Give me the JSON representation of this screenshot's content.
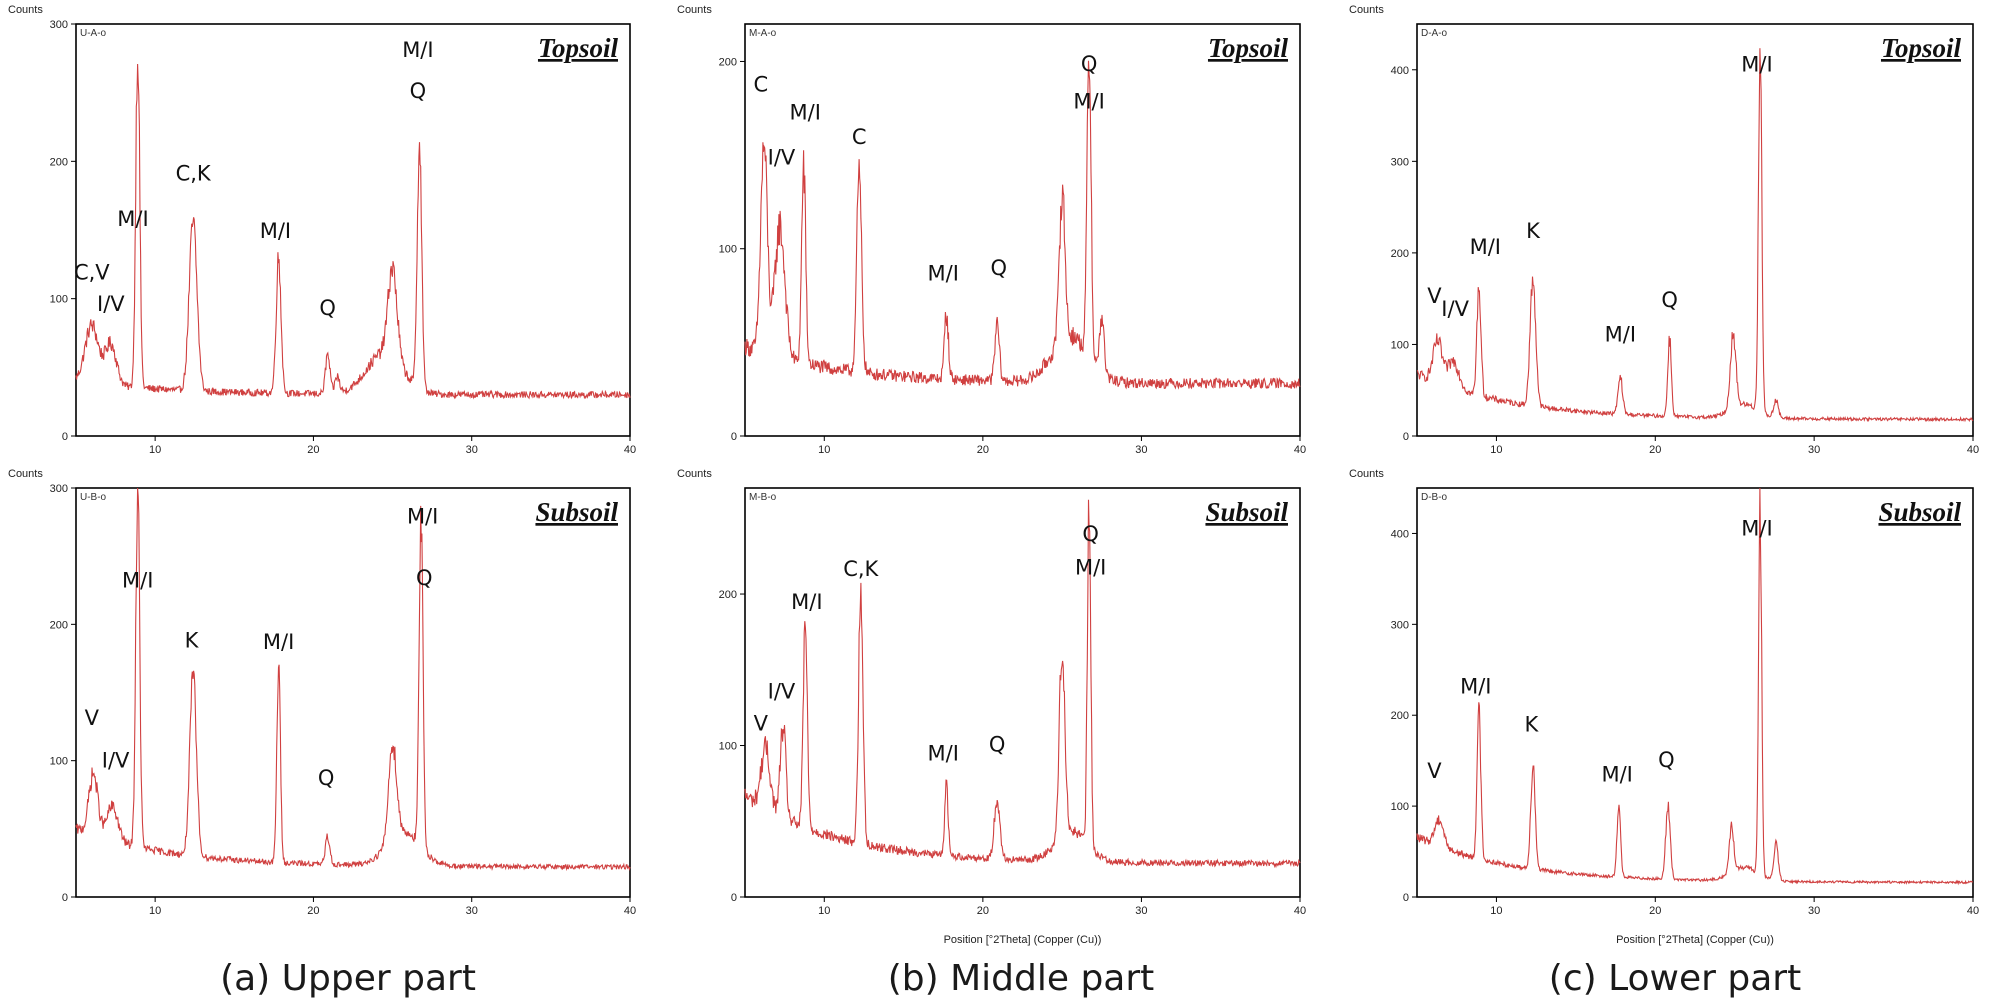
{
  "captions": [
    "(a) Upper part",
    "(b) Middle part",
    "(c) Lower part"
  ],
  "chart_data": [
    {
      "type": "line",
      "panel": "upper-topsoil",
      "sample": "U-A-o",
      "title": "Topsoil",
      "ylabel": "Counts",
      "xlabel": "",
      "xlim": [
        5,
        40
      ],
      "ylim": [
        0,
        300
      ],
      "xticks": [
        10,
        20,
        30,
        40
      ],
      "yticks": [
        0,
        100,
        200,
        300
      ],
      "line_color": "#d04040",
      "background": 30,
      "decay": 10,
      "noise": 0.16,
      "peaks": [
        [
          6,
          42,
          0.6
        ],
        [
          7.2,
          30,
          0.5
        ],
        [
          8.9,
          248,
          0.18
        ],
        [
          12.4,
          122,
          0.35
        ],
        [
          17.8,
          98,
          0.22
        ],
        [
          20.9,
          28,
          0.2
        ],
        [
          21.5,
          12,
          0.2
        ],
        [
          25,
          65,
          0.4
        ],
        [
          26.7,
          180,
          0.2
        ],
        [
          24.5,
          30,
          1.6
        ]
      ],
      "labels": [
        {
          "text": "C,V",
          "x": 6.0,
          "y": 114
        },
        {
          "text": "I/V",
          "x": 7.2,
          "y": 91
        },
        {
          "text": "M/I",
          "x": 8.6,
          "y": 153
        },
        {
          "text": "C,K",
          "x": 12.4,
          "y": 186
        },
        {
          "text": "M/I",
          "x": 17.6,
          "y": 144
        },
        {
          "text": "Q",
          "x": 20.9,
          "y": 88
        },
        {
          "text": "M/I",
          "x": 26.6,
          "y": 276
        },
        {
          "text": "Q",
          "x": 26.6,
          "y": 246
        }
      ]
    },
    {
      "type": "line",
      "panel": "middle-topsoil",
      "sample": "M-A-o",
      "title": "Topsoil",
      "ylabel": "Counts",
      "xlabel": "",
      "xlim": [
        5,
        40
      ],
      "ylim": [
        0,
        220
      ],
      "xticks": [
        10,
        20,
        30,
        40
      ],
      "yticks": [
        0,
        100,
        200
      ],
      "line_color": "#d04040",
      "background": 28,
      "decay": 20,
      "noise": 0.2,
      "peaks": [
        [
          6.2,
          110,
          0.3
        ],
        [
          7.2,
          70,
          0.45
        ],
        [
          8.7,
          105,
          0.18
        ],
        [
          12.2,
          105,
          0.22
        ],
        [
          17.7,
          35,
          0.18
        ],
        [
          20.9,
          30,
          0.2
        ],
        [
          25,
          80,
          0.25
        ],
        [
          26.7,
          165,
          0.18
        ],
        [
          27.5,
          30,
          0.2
        ],
        [
          25.5,
          25,
          1.6
        ]
      ],
      "labels": [
        {
          "text": "C",
          "x": 6.0,
          "y": 184
        },
        {
          "text": "I/V",
          "x": 7.3,
          "y": 145
        },
        {
          "text": "M/I",
          "x": 8.8,
          "y": 169
        },
        {
          "text": "C",
          "x": 12.2,
          "y": 156
        },
        {
          "text": "M/I",
          "x": 17.5,
          "y": 83
        },
        {
          "text": "Q",
          "x": 21.0,
          "y": 86
        },
        {
          "text": "Q",
          "x": 26.7,
          "y": 195
        },
        {
          "text": "M/I",
          "x": 26.7,
          "y": 175
        }
      ]
    },
    {
      "type": "line",
      "panel": "lower-topsoil",
      "sample": "D-A-o",
      "title": "Topsoil",
      "ylabel": "Counts",
      "xlabel": "",
      "xlim": [
        5,
        40
      ],
      "ylim": [
        0,
        450
      ],
      "xticks": [
        10,
        20,
        30,
        40
      ],
      "yticks": [
        0,
        100,
        200,
        300,
        400
      ],
      "line_color": "#d04040",
      "background": 18,
      "decay": 50,
      "noise": 0.18,
      "peaks": [
        [
          6.3,
          45,
          0.4
        ],
        [
          7.3,
          30,
          0.5
        ],
        [
          8.9,
          120,
          0.18
        ],
        [
          12.3,
          140,
          0.25
        ],
        [
          17.8,
          40,
          0.2
        ],
        [
          20.9,
          85,
          0.16
        ],
        [
          24.9,
          80,
          0.25
        ],
        [
          26.6,
          405,
          0.15
        ],
        [
          27.6,
          20,
          0.2
        ],
        [
          25.6,
          15,
          1.2
        ]
      ],
      "labels": [
        {
          "text": "V",
          "x": 6.1,
          "y": 145
        },
        {
          "text": "I/V",
          "x": 7.4,
          "y": 131
        },
        {
          "text": "M/I",
          "x": 9.3,
          "y": 199
        },
        {
          "text": "K",
          "x": 12.3,
          "y": 216
        },
        {
          "text": "M/I",
          "x": 17.8,
          "y": 103
        },
        {
          "text": "Q",
          "x": 20.9,
          "y": 141
        },
        {
          "text": "M/I",
          "x": 26.4,
          "y": 398
        }
      ]
    },
    {
      "type": "line",
      "panel": "upper-subsoil",
      "sample": "U-B-o",
      "title": "Subsoil",
      "ylabel": "Counts",
      "xlabel": "",
      "xlim": [
        5,
        40
      ],
      "ylim": [
        0,
        300
      ],
      "xticks": [
        10,
        20,
        30,
        40
      ],
      "yticks": [
        0,
        100,
        200,
        300
      ],
      "line_color": "#d04040",
      "background": 22,
      "decay": 28,
      "noise": 0.16,
      "peaks": [
        [
          6.1,
          45,
          0.4
        ],
        [
          7.3,
          25,
          0.5
        ],
        [
          8.9,
          260,
          0.18
        ],
        [
          12.4,
          130,
          0.3
        ],
        [
          17.8,
          145,
          0.16
        ],
        [
          20.9,
          20,
          0.2
        ],
        [
          25,
          70,
          0.35
        ],
        [
          26.8,
          240,
          0.17
        ],
        [
          25.7,
          25,
          1.5
        ]
      ],
      "labels": [
        {
          "text": "V",
          "x": 6.0,
          "y": 126
        },
        {
          "text": "I/V",
          "x": 7.5,
          "y": 95
        },
        {
          "text": "M/I",
          "x": 8.9,
          "y": 227
        },
        {
          "text": "K",
          "x": 12.3,
          "y": 183
        },
        {
          "text": "M/I",
          "x": 17.8,
          "y": 182
        },
        {
          "text": "Q",
          "x": 20.8,
          "y": 82
        },
        {
          "text": "M/I",
          "x": 26.9,
          "y": 274
        },
        {
          "text": "Q",
          "x": 27.0,
          "y": 229
        }
      ]
    },
    {
      "type": "line",
      "panel": "middle-subsoil",
      "sample": "M-B-o",
      "title": "Subsoil",
      "ylabel": "Counts",
      "xlabel": "Position [°2Theta] (Copper (Cu))",
      "xlim": [
        5,
        40
      ],
      "ylim": [
        0,
        270
      ],
      "xticks": [
        10,
        20,
        30,
        40
      ],
      "yticks": [
        0,
        100,
        200
      ],
      "line_color": "#d04040",
      "background": 22,
      "decay": 45,
      "noise": 0.18,
      "peaks": [
        [
          6.3,
          40,
          0.4
        ],
        [
          7.4,
          60,
          0.25
        ],
        [
          8.8,
          135,
          0.18
        ],
        [
          12.3,
          165,
          0.2
        ],
        [
          17.7,
          45,
          0.16
        ],
        [
          20.9,
          40,
          0.25
        ],
        [
          25,
          125,
          0.25
        ],
        [
          26.7,
          225,
          0.15
        ],
        [
          25.6,
          20,
          1.4
        ]
      ],
      "labels": [
        {
          "text": "V",
          "x": 6.0,
          "y": 110
        },
        {
          "text": "I/V",
          "x": 7.3,
          "y": 131
        },
        {
          "text": "M/I",
          "x": 8.9,
          "y": 190
        },
        {
          "text": "C,K",
          "x": 12.3,
          "y": 212
        },
        {
          "text": "M/I",
          "x": 17.5,
          "y": 90
        },
        {
          "text": "Q",
          "x": 20.9,
          "y": 96
        },
        {
          "text": "Q",
          "x": 26.8,
          "y": 235
        },
        {
          "text": "M/I",
          "x": 26.8,
          "y": 213
        }
      ]
    },
    {
      "type": "line",
      "panel": "lower-subsoil",
      "sample": "D-B-o",
      "title": "Subsoil",
      "ylabel": "Counts",
      "xlabel": "Position [°2Theta] (Copper (Cu))",
      "xlim": [
        5,
        40
      ],
      "ylim": [
        0,
        450
      ],
      "xticks": [
        10,
        20,
        30,
        40
      ],
      "yticks": [
        0,
        100,
        200,
        300,
        400
      ],
      "line_color": "#d04040",
      "background": 16,
      "decay": 50,
      "noise": 0.15,
      "peaks": [
        [
          6.4,
          30,
          0.4
        ],
        [
          8.9,
          160,
          0.17
        ],
        [
          12.3,
          115,
          0.2
        ],
        [
          17.7,
          80,
          0.16
        ],
        [
          20.8,
          80,
          0.2
        ],
        [
          24.8,
          50,
          0.2
        ],
        [
          26.6,
          405,
          0.14
        ],
        [
          27.6,
          40,
          0.2
        ],
        [
          25.6,
          15,
          1.2
        ]
      ],
      "labels": [
        {
          "text": "V",
          "x": 6.1,
          "y": 131
        },
        {
          "text": "M/I",
          "x": 8.7,
          "y": 224
        },
        {
          "text": "K",
          "x": 12.2,
          "y": 182
        },
        {
          "text": "M/I",
          "x": 17.6,
          "y": 127
        },
        {
          "text": "Q",
          "x": 20.7,
          "y": 143
        },
        {
          "text": "M/I",
          "x": 26.4,
          "y": 398
        }
      ]
    }
  ]
}
